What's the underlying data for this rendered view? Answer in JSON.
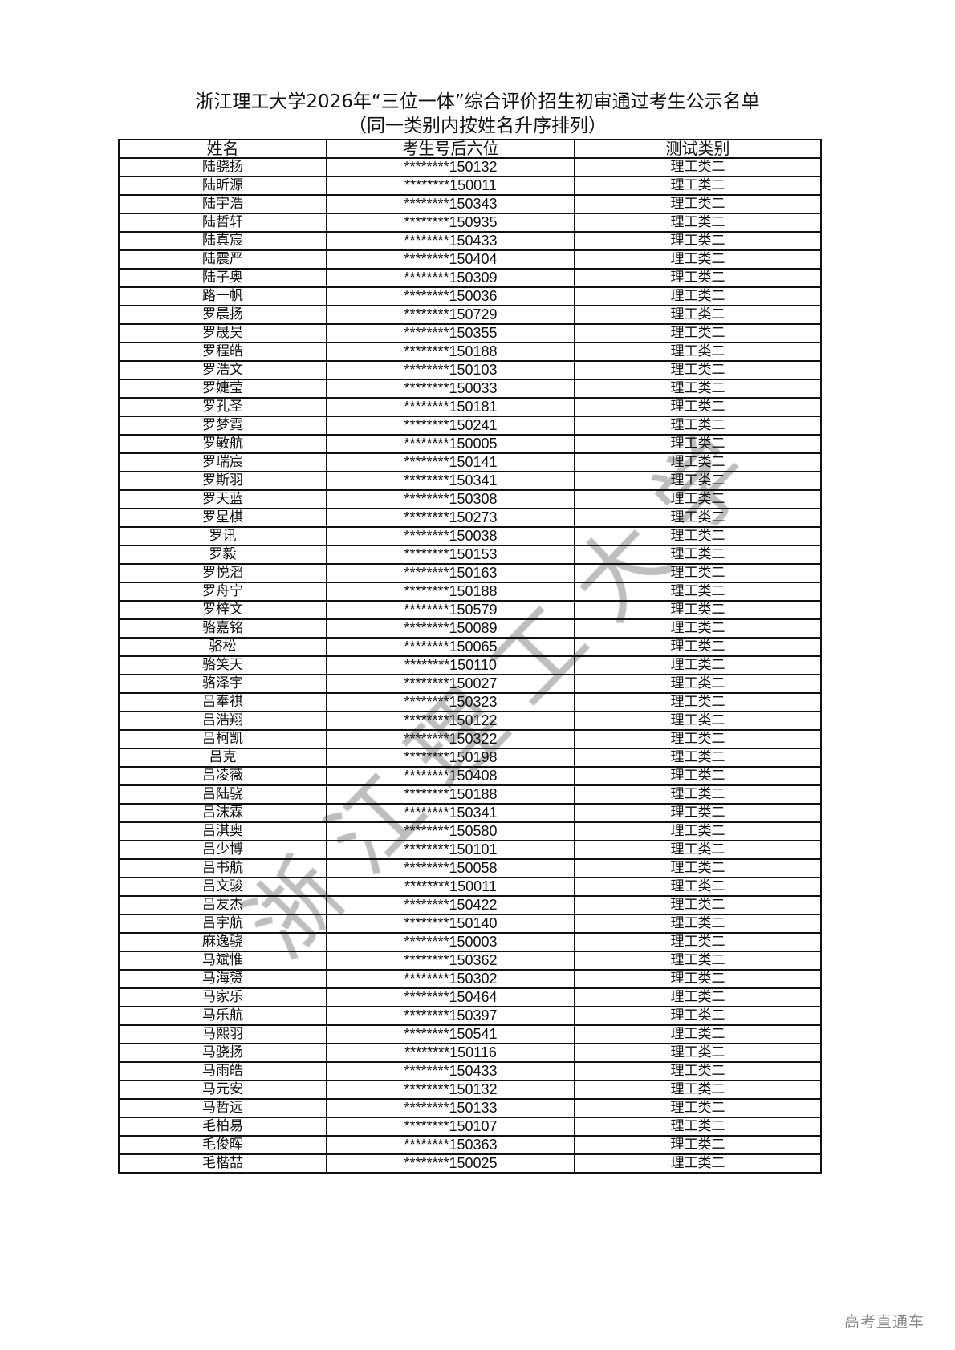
{
  "document": {
    "title": "浙江理工大学2026年“三位一体”综合评价招生初审通过考生公示名单",
    "subtitle": "（同一类别内按姓名升序排列）",
    "watermark": "浙江理工大学",
    "footer_watermark": "高考直通车"
  },
  "table": {
    "headers": [
      "姓名",
      "考生号后六位",
      "测试类别"
    ],
    "rows": [
      [
        "陆骁扬",
        "********150132",
        "理工类二"
      ],
      [
        "陆昕源",
        "********150011",
        "理工类二"
      ],
      [
        "陆宇浩",
        "********150343",
        "理工类二"
      ],
      [
        "陆哲轩",
        "********150935",
        "理工类二"
      ],
      [
        "陆真宸",
        "********150433",
        "理工类二"
      ],
      [
        "陆震严",
        "********150404",
        "理工类二"
      ],
      [
        "陆子奥",
        "********150309",
        "理工类二"
      ],
      [
        "路一帆",
        "********150036",
        "理工类二"
      ],
      [
        "罗晨扬",
        "********150729",
        "理工类二"
      ],
      [
        "罗晟昊",
        "********150355",
        "理工类二"
      ],
      [
        "罗程皓",
        "********150188",
        "理工类二"
      ],
      [
        "罗浩文",
        "********150103",
        "理工类二"
      ],
      [
        "罗婕莹",
        "********150033",
        "理工类二"
      ],
      [
        "罗孔圣",
        "********150181",
        "理工类二"
      ],
      [
        "罗梦霓",
        "********150241",
        "理工类二"
      ],
      [
        "罗敏航",
        "********150005",
        "理工类二"
      ],
      [
        "罗瑞宸",
        "********150141",
        "理工类二"
      ],
      [
        "罗斯羽",
        "********150341",
        "理工类二"
      ],
      [
        "罗天蓝",
        "********150308",
        "理工类二"
      ],
      [
        "罗星棋",
        "********150273",
        "理工类二"
      ],
      [
        "罗讯",
        "********150038",
        "理工类二"
      ],
      [
        "罗毅",
        "********150153",
        "理工类二"
      ],
      [
        "罗悦滔",
        "********150163",
        "理工类二"
      ],
      [
        "罗舟宁",
        "********150188",
        "理工类二"
      ],
      [
        "罗梓文",
        "********150579",
        "理工类二"
      ],
      [
        "骆嘉铭",
        "********150089",
        "理工类二"
      ],
      [
        "骆松",
        "********150065",
        "理工类二"
      ],
      [
        "骆笑天",
        "********150110",
        "理工类二"
      ],
      [
        "骆泽宇",
        "********150027",
        "理工类二"
      ],
      [
        "吕奉祺",
        "********150323",
        "理工类二"
      ],
      [
        "吕浩翔",
        "********150122",
        "理工类二"
      ],
      [
        "吕柯凯",
        "********150322",
        "理工类二"
      ],
      [
        "吕克",
        "********150198",
        "理工类二"
      ],
      [
        "吕凌薇",
        "********150408",
        "理工类二"
      ],
      [
        "吕陆骁",
        "********150188",
        "理工类二"
      ],
      [
        "吕沫霖",
        "********150341",
        "理工类二"
      ],
      [
        "吕淇奥",
        "********150580",
        "理工类二"
      ],
      [
        "吕少博",
        "********150101",
        "理工类二"
      ],
      [
        "吕书航",
        "********150058",
        "理工类二"
      ],
      [
        "吕文骏",
        "********150011",
        "理工类二"
      ],
      [
        "吕友杰",
        "********150422",
        "理工类二"
      ],
      [
        "吕宇航",
        "********150140",
        "理工类二"
      ],
      [
        "麻逸骁",
        "********150003",
        "理工类二"
      ],
      [
        "马斌惟",
        "********150362",
        "理工类二"
      ],
      [
        "马海赟",
        "********150302",
        "理工类二"
      ],
      [
        "马家乐",
        "********150464",
        "理工类二"
      ],
      [
        "马乐航",
        "********150397",
        "理工类二"
      ],
      [
        "马熙羽",
        "********150541",
        "理工类二"
      ],
      [
        "马骁扬",
        "********150116",
        "理工类二"
      ],
      [
        "马雨皓",
        "********150433",
        "理工类二"
      ],
      [
        "马元安",
        "********150132",
        "理工类二"
      ],
      [
        "马哲远",
        "********150133",
        "理工类二"
      ],
      [
        "毛柏易",
        "********150107",
        "理工类二"
      ],
      [
        "毛俊晖",
        "********150363",
        "理工类二"
      ],
      [
        "毛楷喆",
        "********150025",
        "理工类二"
      ]
    ]
  }
}
